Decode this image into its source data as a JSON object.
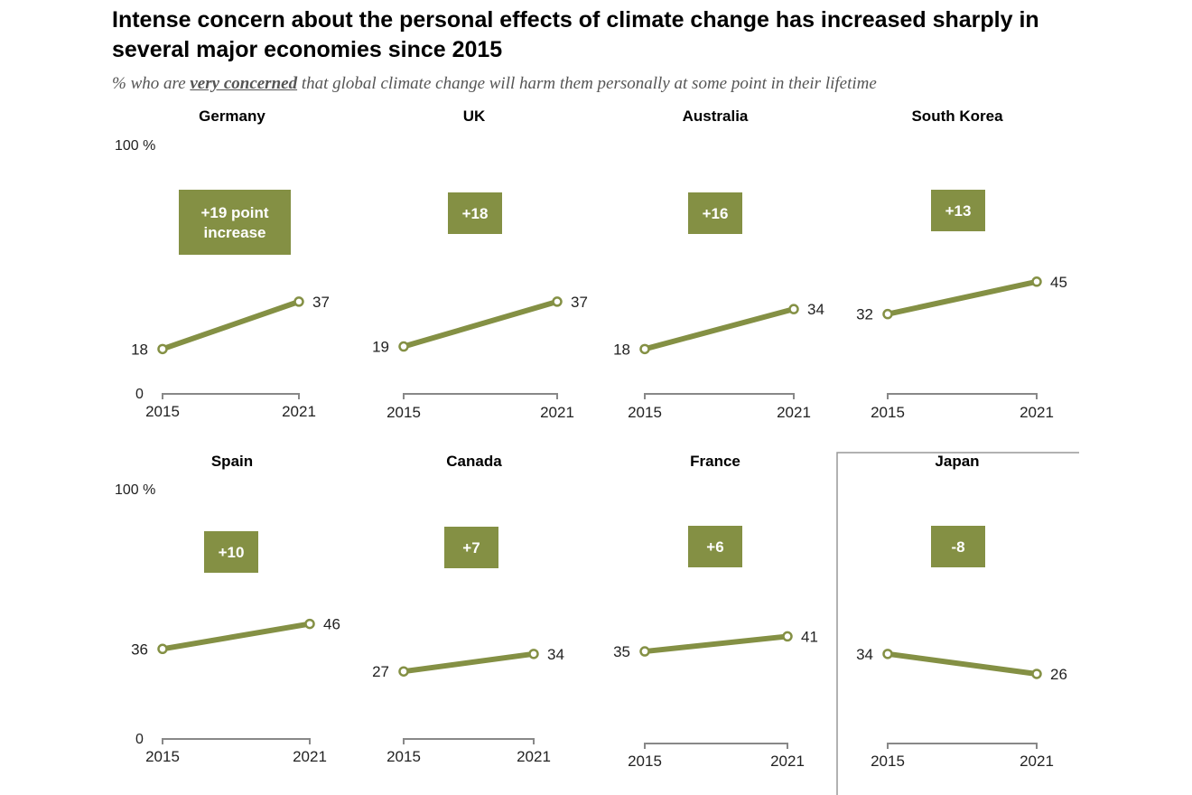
{
  "header": {
    "title": "Intense concern about the personal effects of climate change has increased sharply in several major economies since 2015",
    "subtitle_prefix": "% who are ",
    "subtitle_emphasis": "very concerned",
    "subtitle_suffix": " that global climate change will harm them personally at some point in their lifetime"
  },
  "colors": {
    "line": "#849044",
    "badge": "#849044",
    "axis": "#888888",
    "frame": "#999999"
  },
  "chart_data": {
    "type": "line",
    "title": "Intense concern about the personal effects of climate change has increased sharply in several major economies since 2015",
    "subtitle": "% who are very concerned that global climate change will harm them personally at some point in their lifetime",
    "x": [
      "2015",
      "2021"
    ],
    "ylim": [
      0,
      100
    ],
    "y_axis_labels": {
      "top": "100 %",
      "bottom": "0"
    },
    "series": [
      {
        "name": "Germany",
        "values": [
          18,
          37
        ],
        "change_label": "+19 point increase"
      },
      {
        "name": "UK",
        "values": [
          19,
          37
        ],
        "change_label": "+18"
      },
      {
        "name": "Australia",
        "values": [
          18,
          34
        ],
        "change_label": "+16"
      },
      {
        "name": "South Korea",
        "values": [
          32,
          45
        ],
        "change_label": "+13"
      },
      {
        "name": "Spain",
        "values": [
          36,
          46
        ],
        "change_label": "+10"
      },
      {
        "name": "Canada",
        "values": [
          27,
          34
        ],
        "change_label": "+7"
      },
      {
        "name": "France",
        "values": [
          35,
          41
        ],
        "change_label": "+6"
      },
      {
        "name": "Japan",
        "values": [
          34,
          26
        ],
        "change_label": "-8",
        "highlighted": true
      }
    ]
  }
}
